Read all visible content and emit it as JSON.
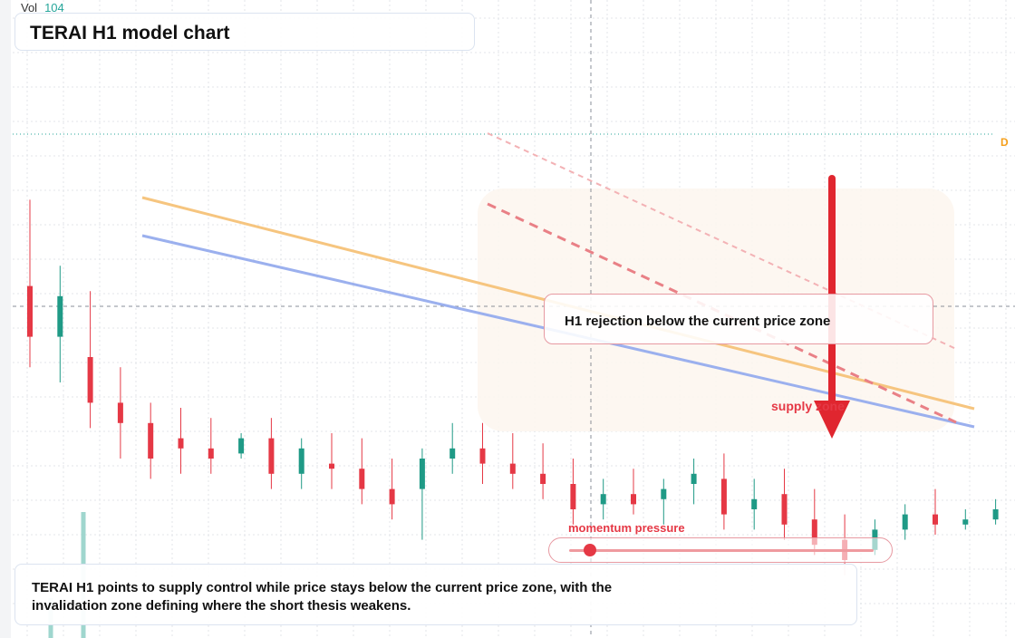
{
  "header": {
    "volume_label": "Vol",
    "volume_value": "104"
  },
  "title": "TERAI H1 model chart",
  "callout": "H1 rejection below the current price zone",
  "zone_label": "supply zone",
  "momentum": {
    "label": "momentum pressure",
    "level": 0.07
  },
  "summary": "TERAI H1 points to supply control while price stays below the current price zone, with the invalidation zone defining where the short thesis weakens.",
  "edge_marker": "D",
  "colors": {
    "up": "#1f9a86",
    "down": "#e53845",
    "trend_orange": "#f6c57f",
    "trend_blue": "#9bb0ee",
    "arrow": "#e0262f"
  },
  "chart_data": {
    "type": "candlestick",
    "title": "TERAI H1 model chart",
    "grid": true,
    "candles": [
      {
        "o": 0.4,
        "h": 2.1,
        "l": -1.2,
        "c": -0.6
      },
      {
        "o": -0.6,
        "h": 0.8,
        "l": -1.5,
        "c": 0.2
      },
      {
        "o": -1.0,
        "h": 0.3,
        "l": -2.4,
        "c": -1.9
      },
      {
        "o": -1.9,
        "h": -1.2,
        "l": -3.0,
        "c": -2.3
      },
      {
        "o": -2.3,
        "h": -1.9,
        "l": -3.4,
        "c": -3.0
      },
      {
        "o": -2.6,
        "h": -2.0,
        "l": -3.3,
        "c": -2.8
      },
      {
        "o": -2.8,
        "h": -2.2,
        "l": -3.3,
        "c": -3.0
      },
      {
        "o": -2.9,
        "h": -2.5,
        "l": -3.0,
        "c": -2.6
      },
      {
        "o": -2.6,
        "h": -2.2,
        "l": -3.6,
        "c": -3.3
      },
      {
        "o": -3.3,
        "h": -2.6,
        "l": -3.6,
        "c": -2.8
      },
      {
        "o": -3.1,
        "h": -2.5,
        "l": -3.6,
        "c": -3.2
      },
      {
        "o": -3.2,
        "h": -2.6,
        "l": -3.9,
        "c": -3.6
      },
      {
        "o": -3.6,
        "h": -3.0,
        "l": -4.2,
        "c": -3.9
      },
      {
        "o": -3.6,
        "h": -2.8,
        "l": -4.6,
        "c": -3.0
      },
      {
        "o": -3.0,
        "h": -2.3,
        "l": -3.3,
        "c": -2.8
      },
      {
        "o": -2.8,
        "h": -2.3,
        "l": -3.5,
        "c": -3.1
      },
      {
        "o": -3.1,
        "h": -2.5,
        "l": -3.6,
        "c": -3.3
      },
      {
        "o": -3.3,
        "h": -2.7,
        "l": -3.8,
        "c": -3.5
      },
      {
        "o": -3.5,
        "h": -3.0,
        "l": -4.3,
        "c": -4.0
      },
      {
        "o": -3.9,
        "h": -3.4,
        "l": -4.2,
        "c": -3.7
      },
      {
        "o": -3.7,
        "h": -3.2,
        "l": -4.1,
        "c": -3.9
      },
      {
        "o": -3.8,
        "h": -3.4,
        "l": -4.3,
        "c": -3.6
      },
      {
        "o": -3.5,
        "h": -3.0,
        "l": -3.9,
        "c": -3.3
      },
      {
        "o": -3.4,
        "h": -2.9,
        "l": -4.4,
        "c": -4.1
      },
      {
        "o": -4.0,
        "h": -3.4,
        "l": -4.4,
        "c": -3.8
      },
      {
        "o": -3.7,
        "h": -3.2,
        "l": -4.6,
        "c": -4.3
      },
      {
        "o": -4.2,
        "h": -3.6,
        "l": -4.9,
        "c": -4.7
      },
      {
        "o": -4.6,
        "h": -4.1,
        "l": -5.3,
        "c": -5.0
      },
      {
        "o": -4.8,
        "h": -4.2,
        "l": -4.9,
        "c": -4.4
      },
      {
        "o": -4.4,
        "h": -3.9,
        "l": -4.6,
        "c": -4.1
      },
      {
        "o": -4.1,
        "h": -3.6,
        "l": -4.5,
        "c": -4.3
      },
      {
        "o": -4.3,
        "h": -4.0,
        "l": -4.4,
        "c": -4.2
      },
      {
        "o": -4.2,
        "h": -3.8,
        "l": -4.3,
        "c": -4.0
      }
    ]
  }
}
